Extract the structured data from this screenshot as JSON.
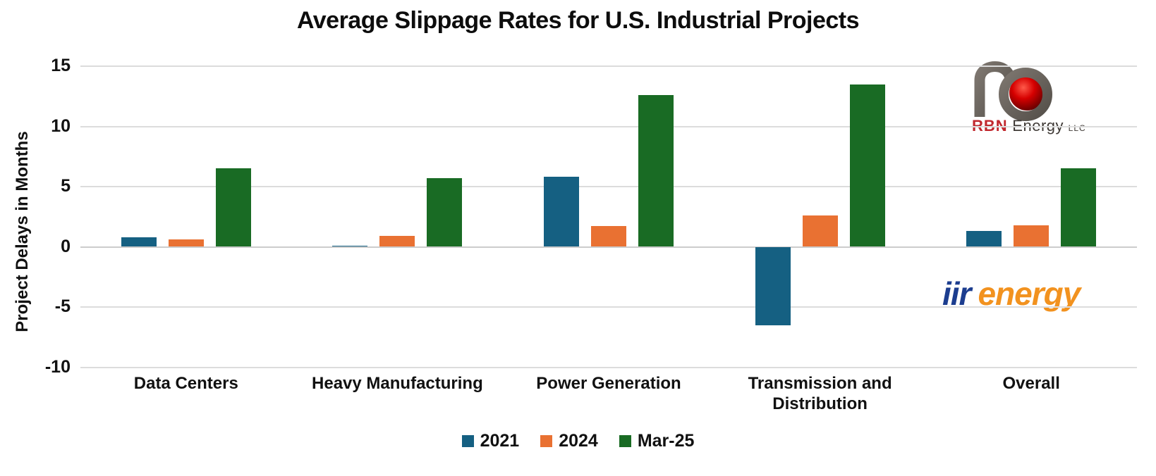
{
  "chart_data": {
    "type": "bar",
    "title": "Average Slippage Rates for U.S. Industrial Projects",
    "xlabel": "",
    "ylabel": "Project Delays in Months",
    "categories": [
      "Data Centers",
      "Heavy Manufacturing",
      "Power Generation",
      "Transmission and Distribution",
      "Overall"
    ],
    "series": [
      {
        "name": "2021",
        "color": "#156082",
        "values": [
          0.8,
          0.1,
          5.8,
          -6.5,
          1.3
        ]
      },
      {
        "name": "2024",
        "color": "#E97132",
        "values": [
          0.6,
          0.9,
          1.7,
          2.6,
          1.8
        ]
      },
      {
        "name": "Mar-25",
        "color": "#196B24",
        "values": [
          6.5,
          5.7,
          12.6,
          13.5,
          6.5
        ]
      }
    ],
    "ylim": [
      -10,
      15
    ],
    "yticks": [
      15,
      10,
      5,
      0,
      -5,
      -10
    ],
    "grid": true,
    "legend_position": "bottom"
  },
  "branding": {
    "rbn": {
      "primary": "RBN",
      "secondary": "Energy",
      "suffix": "LLC"
    },
    "iir": {
      "part1": "iir",
      "part2": "energy",
      "color1": "#1c3d8f",
      "color2": "#f2921f"
    }
  },
  "style": {
    "gridline_color": "#dcdcdc",
    "text_color": "#111111",
    "background": "#ffffff"
  }
}
